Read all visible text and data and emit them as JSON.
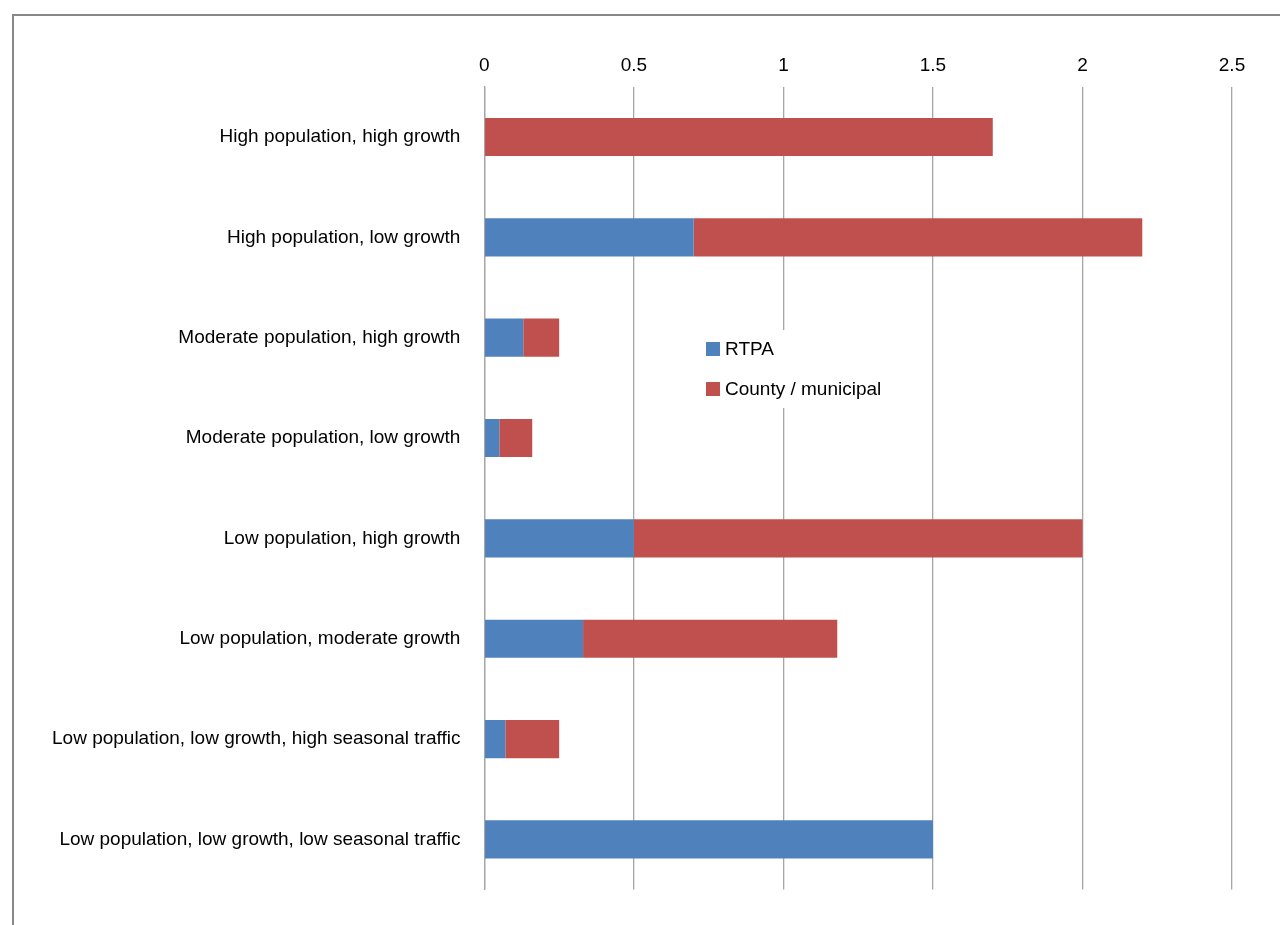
{
  "chart_data": {
    "type": "bar",
    "orientation": "horizontal",
    "stacked": true,
    "categories": [
      "High population, high growth",
      "High population, low growth",
      "Moderate population, high growth",
      "Moderate population, low growth",
      "Low population, high growth",
      "Low population, moderate growth",
      "Low population, low growth, high seasonal traffic",
      "Low population, low growth, low seasonal traffic"
    ],
    "series": [
      {
        "name": "RTPA",
        "color": "#4f81bd",
        "values": [
          0,
          0.7,
          0.13,
          0.05,
          0.5,
          0.33,
          0.07,
          1.5
        ]
      },
      {
        "name": "County / municipal",
        "color": "#c0504d",
        "values": [
          1.7,
          1.5,
          0.12,
          0.11,
          1.5,
          0.85,
          0.18,
          0
        ]
      }
    ],
    "xlim": [
      0,
      2.5
    ],
    "xticks": [
      0,
      0.5,
      1,
      1.5,
      2,
      2.5
    ],
    "grid": "x",
    "legend": "top left"
  }
}
